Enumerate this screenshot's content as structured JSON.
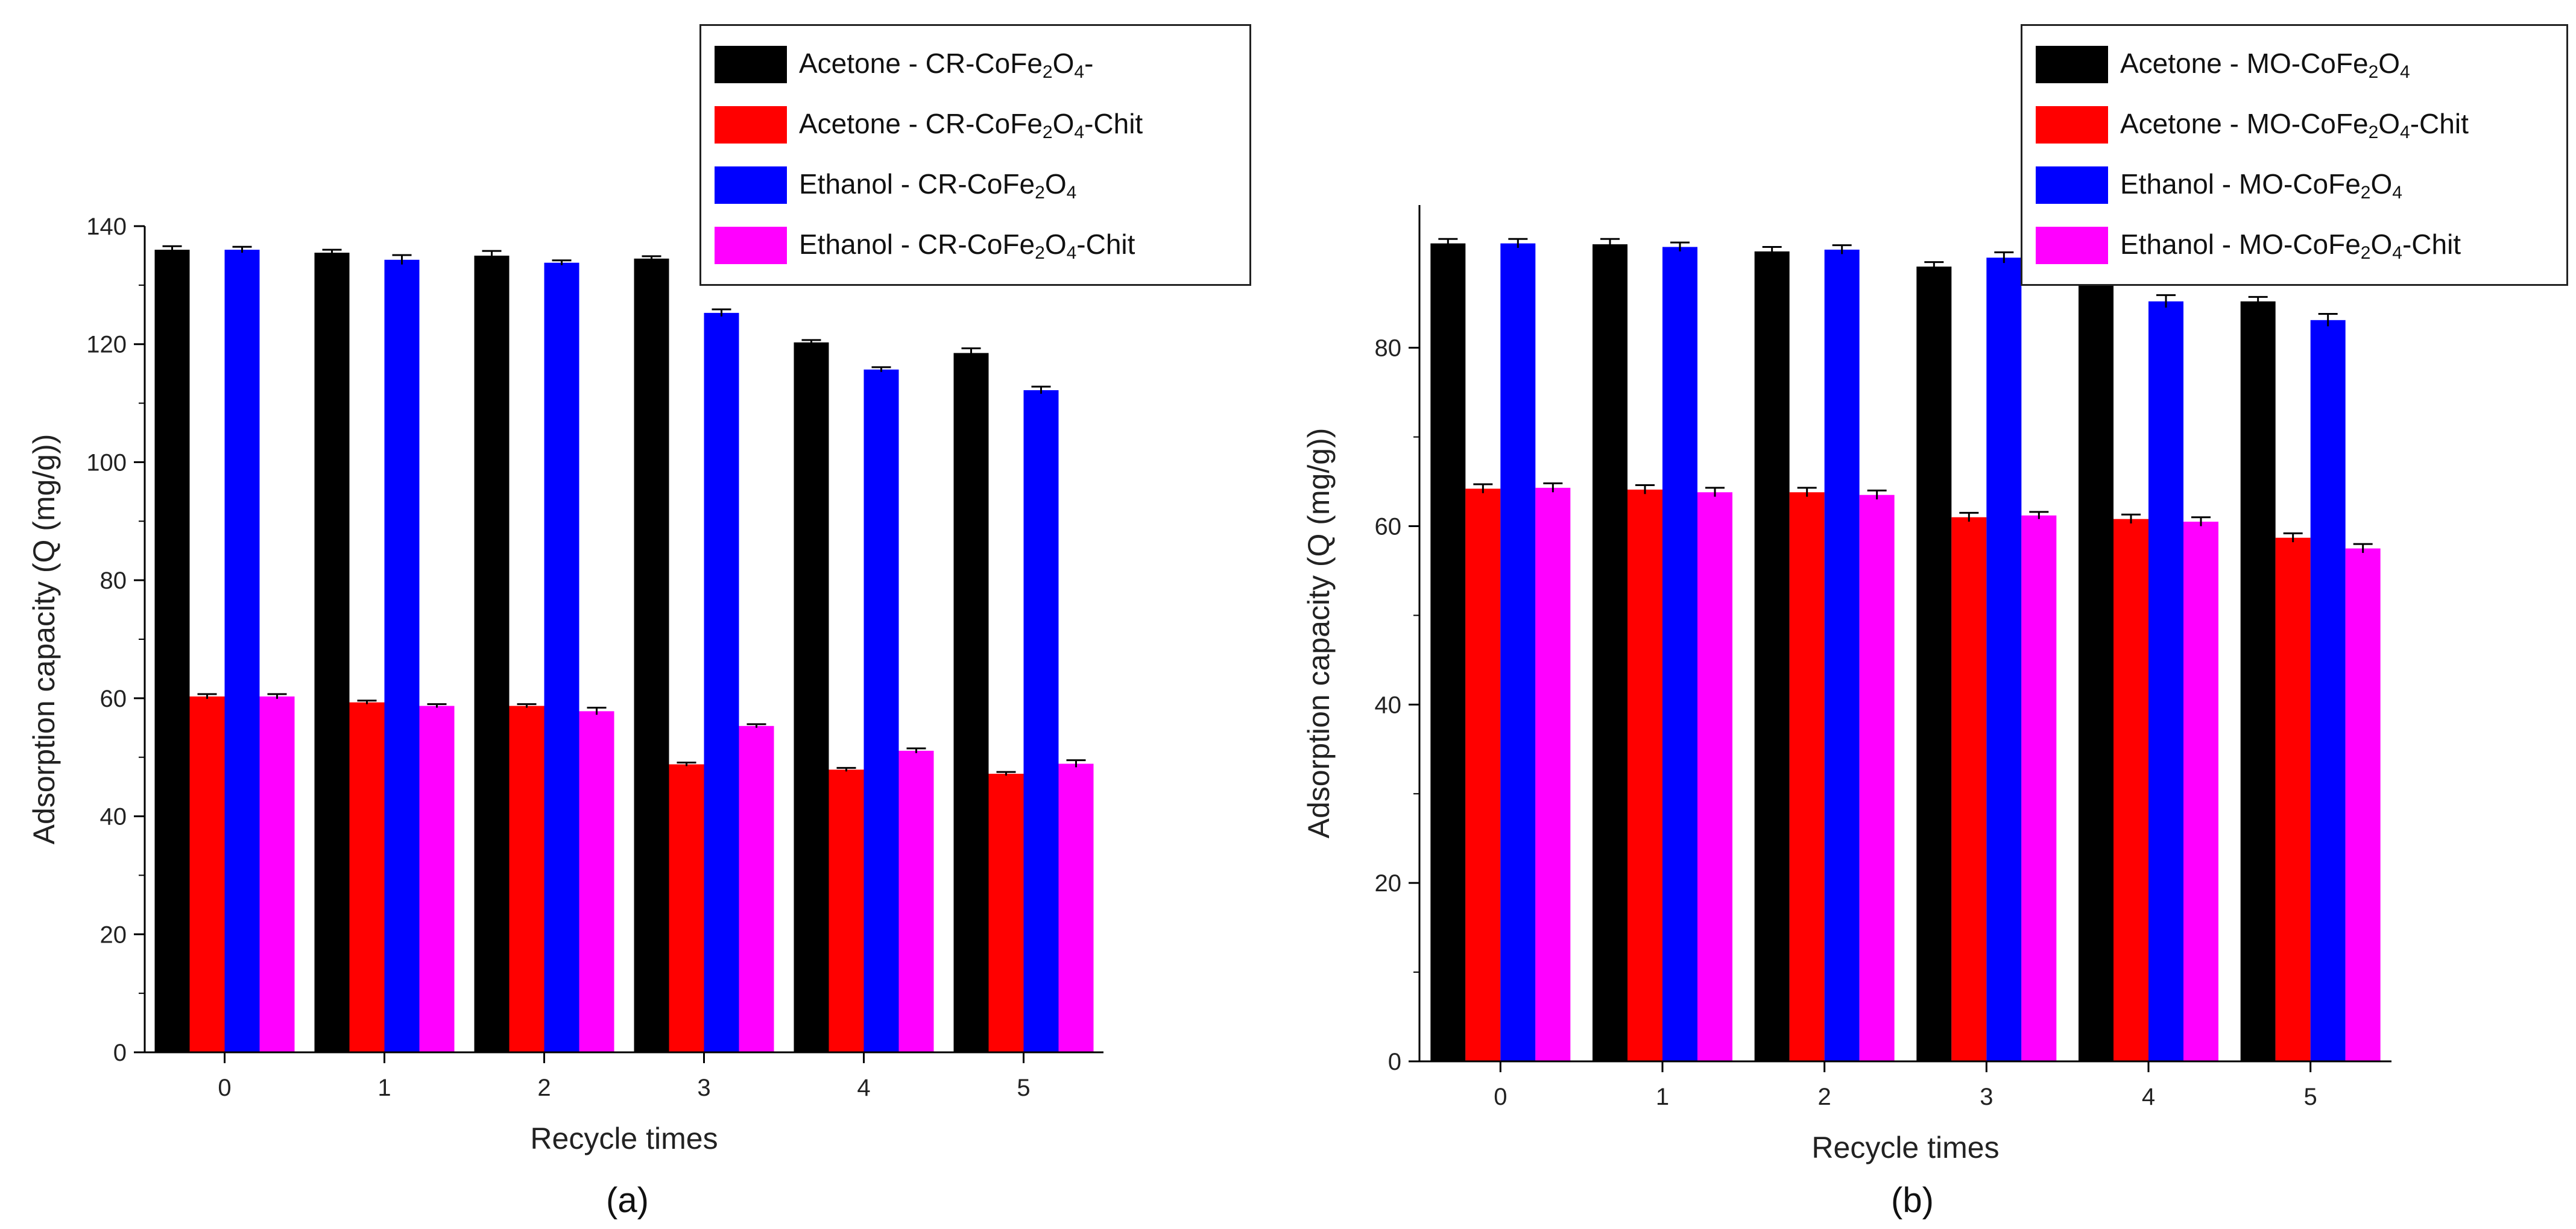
{
  "colors": {
    "acetone_bare": "#000000",
    "acetone_chit": "#ff0000",
    "ethanol_bare": "#0000ff",
    "ethanol_chit": "#ff00ff"
  },
  "chart_data": [
    {
      "type": "bar",
      "panel_label": "(a)",
      "xlabel": "Recycle times",
      "ylabel": "Adsorption capacity (Q (mg/g))",
      "categories": [
        "0",
        "1",
        "2",
        "3",
        "4",
        "5"
      ],
      "ylim": [
        0,
        140
      ],
      "yticks": [
        0,
        20,
        40,
        60,
        80,
        100,
        120,
        140
      ],
      "legend_position": "top-right",
      "series": [
        {
          "key": "acetone_bare",
          "name": "Acetone - CR-CoFe2O4",
          "legend_main": "Acetone - CR-CoFe",
          "legend_suffix": "-",
          "color": "#000000",
          "values": [
            136,
            135.5,
            135,
            134.5,
            120.3,
            118.5
          ],
          "errors": [
            0.6,
            0.5,
            0.8,
            0.4,
            0.4,
            0.8
          ]
        },
        {
          "key": "acetone_chit",
          "name": "Acetone - CR-CoFe2O4-Chit",
          "legend_main": "Acetone - CR-CoFe",
          "legend_suffix": "-Chit",
          "color": "#ff0000",
          "values": [
            60.3,
            59.3,
            58.7,
            48.8,
            47.9,
            47.2
          ],
          "errors": [
            0.4,
            0.3,
            0.3,
            0.3,
            0.3,
            0.3
          ]
        },
        {
          "key": "ethanol_bare",
          "name": "Ethanol - CR-CoFe2O4",
          "legend_main": "Ethanol - CR-CoFe",
          "legend_suffix": "",
          "color": "#0000ff",
          "values": [
            136,
            134.3,
            133.8,
            125.3,
            115.7,
            112.2
          ],
          "errors": [
            0.5,
            0.8,
            0.4,
            0.6,
            0.4,
            0.6
          ]
        },
        {
          "key": "ethanol_chit",
          "name": "Ethanol - CR-CoFe2O4-Chit",
          "legend_main": "Ethanol - CR-CoFe",
          "legend_suffix": "-Chit",
          "color": "#ff00ff",
          "values": [
            60.3,
            58.7,
            57.8,
            55.3,
            51.1,
            48.9
          ],
          "errors": [
            0.4,
            0.3,
            0.6,
            0.3,
            0.4,
            0.6
          ]
        }
      ]
    },
    {
      "type": "bar",
      "panel_label": "(b)",
      "xlabel": "Recycle times",
      "ylabel": "Adsorption capacity (Q (mg/g))",
      "categories": [
        "0",
        "1",
        "2",
        "3",
        "4",
        "5"
      ],
      "ylim": [
        0,
        96
      ],
      "yticks": [
        0,
        20,
        40,
        60,
        80
      ],
      "legend_position": "top-right",
      "series": [
        {
          "key": "acetone_bare",
          "name": "Acetone - MO-CoFe2O4",
          "legend_main": "Acetone - MO-CoFe",
          "legend_suffix": "",
          "color": "#000000",
          "values": [
            91.7,
            91.6,
            90.8,
            89.1,
            87.3,
            85.2
          ],
          "errors": [
            0.5,
            0.6,
            0.5,
            0.5,
            0.3,
            0.5
          ]
        },
        {
          "key": "acetone_chit",
          "name": "Acetone - MO-CoFe2O4-Chit",
          "legend_main": "Acetone - MO-CoFe",
          "legend_suffix": "-Chit",
          "color": "#ff0000",
          "values": [
            64.2,
            64.1,
            63.8,
            61,
            60.8,
            58.7
          ],
          "errors": [
            0.5,
            0.5,
            0.5,
            0.5,
            0.5,
            0.5
          ]
        },
        {
          "key": "ethanol_bare",
          "name": "Ethanol - MO-CoFe2O4",
          "legend_main": "Ethanol - MO-CoFe",
          "legend_suffix": "",
          "color": "#0000ff",
          "values": [
            91.7,
            91.3,
            91,
            90.1,
            85.2,
            83.1
          ],
          "errors": [
            0.5,
            0.5,
            0.5,
            0.6,
            0.7,
            0.7
          ]
        },
        {
          "key": "ethanol_chit",
          "name": "Ethanol - MO-CoFe2O4-Chit",
          "legend_main": "Ethanol - MO-CoFe",
          "legend_suffix": "-Chit",
          "color": "#ff00ff",
          "values": [
            64.3,
            63.8,
            63.5,
            61.2,
            60.5,
            57.5
          ],
          "errors": [
            0.5,
            0.5,
            0.5,
            0.4,
            0.5,
            0.5
          ]
        }
      ]
    }
  ]
}
